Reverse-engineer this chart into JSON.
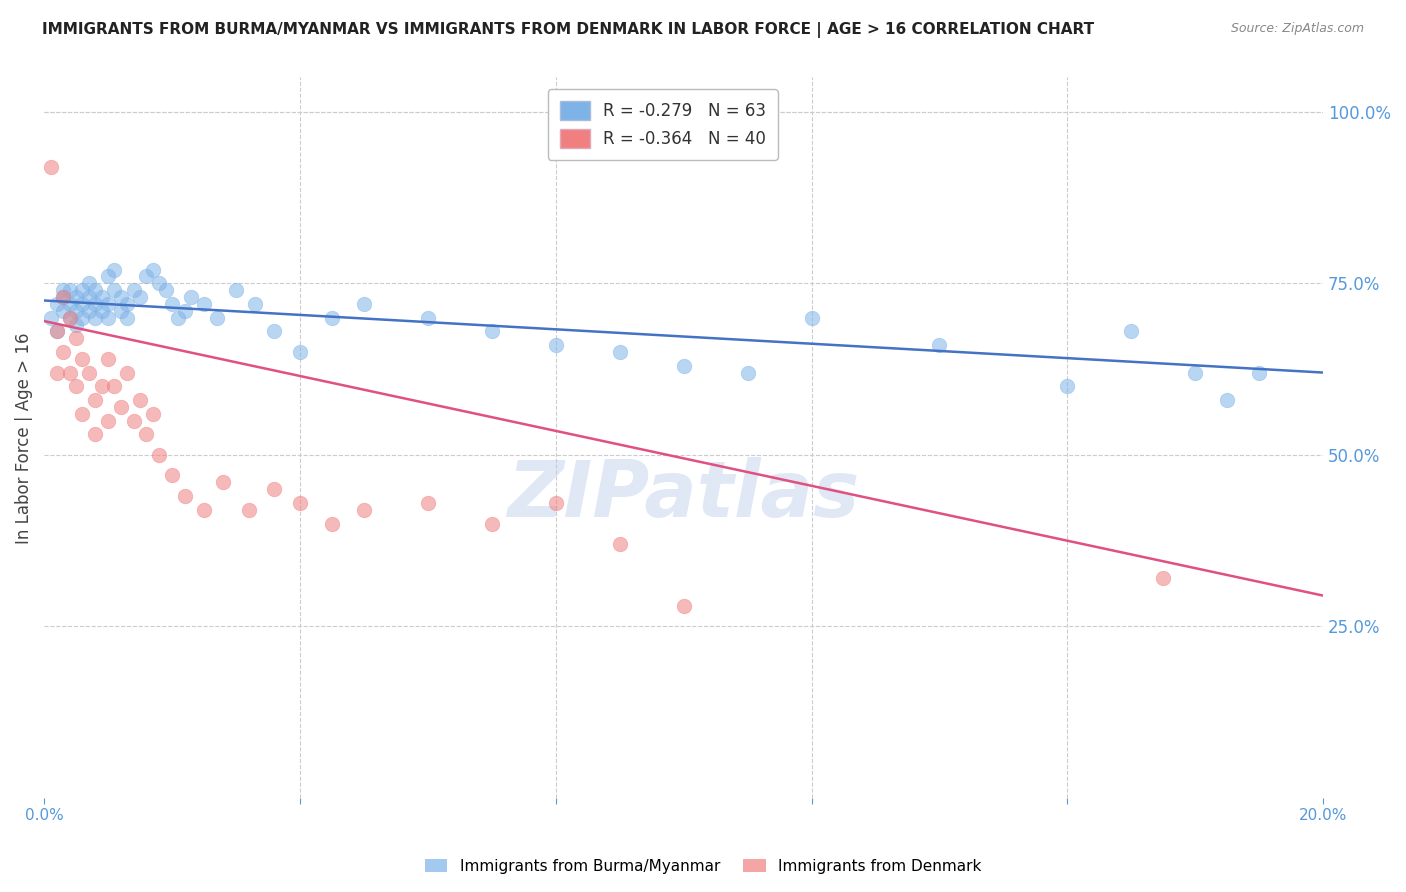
{
  "title": "IMMIGRANTS FROM BURMA/MYANMAR VS IMMIGRANTS FROM DENMARK IN LABOR FORCE | AGE > 16 CORRELATION CHART",
  "source": "Source: ZipAtlas.com",
  "ylabel": "In Labor Force | Age > 16",
  "right_ytick_vals": [
    1.0,
    0.75,
    0.5,
    0.25
  ],
  "xlim": [
    0.0,
    0.2
  ],
  "ylim": [
    0.0,
    1.05
  ],
  "blue_color": "#7EB3E8",
  "pink_color": "#F08080",
  "blue_line_color": "#4472C4",
  "pink_line_color": "#E05080",
  "blue_R": -0.279,
  "blue_N": 63,
  "pink_R": -0.364,
  "pink_N": 40,
  "legend_label_blue": "Immigrants from Burma/Myanmar",
  "legend_label_pink": "Immigrants from Denmark",
  "watermark": "ZIPatlas",
  "blue_points_x": [
    0.001,
    0.002,
    0.002,
    0.003,
    0.003,
    0.003,
    0.004,
    0.004,
    0.004,
    0.005,
    0.005,
    0.005,
    0.006,
    0.006,
    0.006,
    0.007,
    0.007,
    0.007,
    0.008,
    0.008,
    0.008,
    0.009,
    0.009,
    0.01,
    0.01,
    0.01,
    0.011,
    0.011,
    0.012,
    0.012,
    0.013,
    0.013,
    0.014,
    0.015,
    0.016,
    0.017,
    0.018,
    0.019,
    0.02,
    0.021,
    0.022,
    0.023,
    0.025,
    0.027,
    0.03,
    0.033,
    0.036,
    0.04,
    0.045,
    0.05,
    0.06,
    0.07,
    0.08,
    0.09,
    0.1,
    0.11,
    0.12,
    0.14,
    0.16,
    0.17,
    0.18,
    0.185,
    0.19
  ],
  "blue_points_y": [
    0.7,
    0.72,
    0.68,
    0.74,
    0.71,
    0.73,
    0.72,
    0.7,
    0.74,
    0.71,
    0.73,
    0.69,
    0.72,
    0.74,
    0.7,
    0.73,
    0.71,
    0.75,
    0.72,
    0.7,
    0.74,
    0.71,
    0.73,
    0.76,
    0.72,
    0.7,
    0.77,
    0.74,
    0.73,
    0.71,
    0.72,
    0.7,
    0.74,
    0.73,
    0.76,
    0.77,
    0.75,
    0.74,
    0.72,
    0.7,
    0.71,
    0.73,
    0.72,
    0.7,
    0.74,
    0.72,
    0.68,
    0.65,
    0.7,
    0.72,
    0.7,
    0.68,
    0.66,
    0.65,
    0.63,
    0.62,
    0.7,
    0.66,
    0.6,
    0.68,
    0.62,
    0.58,
    0.62
  ],
  "pink_points_x": [
    0.001,
    0.002,
    0.002,
    0.003,
    0.003,
    0.004,
    0.004,
    0.005,
    0.005,
    0.006,
    0.006,
    0.007,
    0.008,
    0.008,
    0.009,
    0.01,
    0.01,
    0.011,
    0.012,
    0.013,
    0.014,
    0.015,
    0.016,
    0.017,
    0.018,
    0.02,
    0.022,
    0.025,
    0.028,
    0.032,
    0.036,
    0.04,
    0.045,
    0.05,
    0.06,
    0.07,
    0.08,
    0.09,
    0.1,
    0.175
  ],
  "pink_points_y": [
    0.92,
    0.68,
    0.62,
    0.73,
    0.65,
    0.7,
    0.62,
    0.67,
    0.6,
    0.64,
    0.56,
    0.62,
    0.58,
    0.53,
    0.6,
    0.64,
    0.55,
    0.6,
    0.57,
    0.62,
    0.55,
    0.58,
    0.53,
    0.56,
    0.5,
    0.47,
    0.44,
    0.42,
    0.46,
    0.42,
    0.45,
    0.43,
    0.4,
    0.42,
    0.43,
    0.4,
    0.43,
    0.37,
    0.28,
    0.32
  ]
}
